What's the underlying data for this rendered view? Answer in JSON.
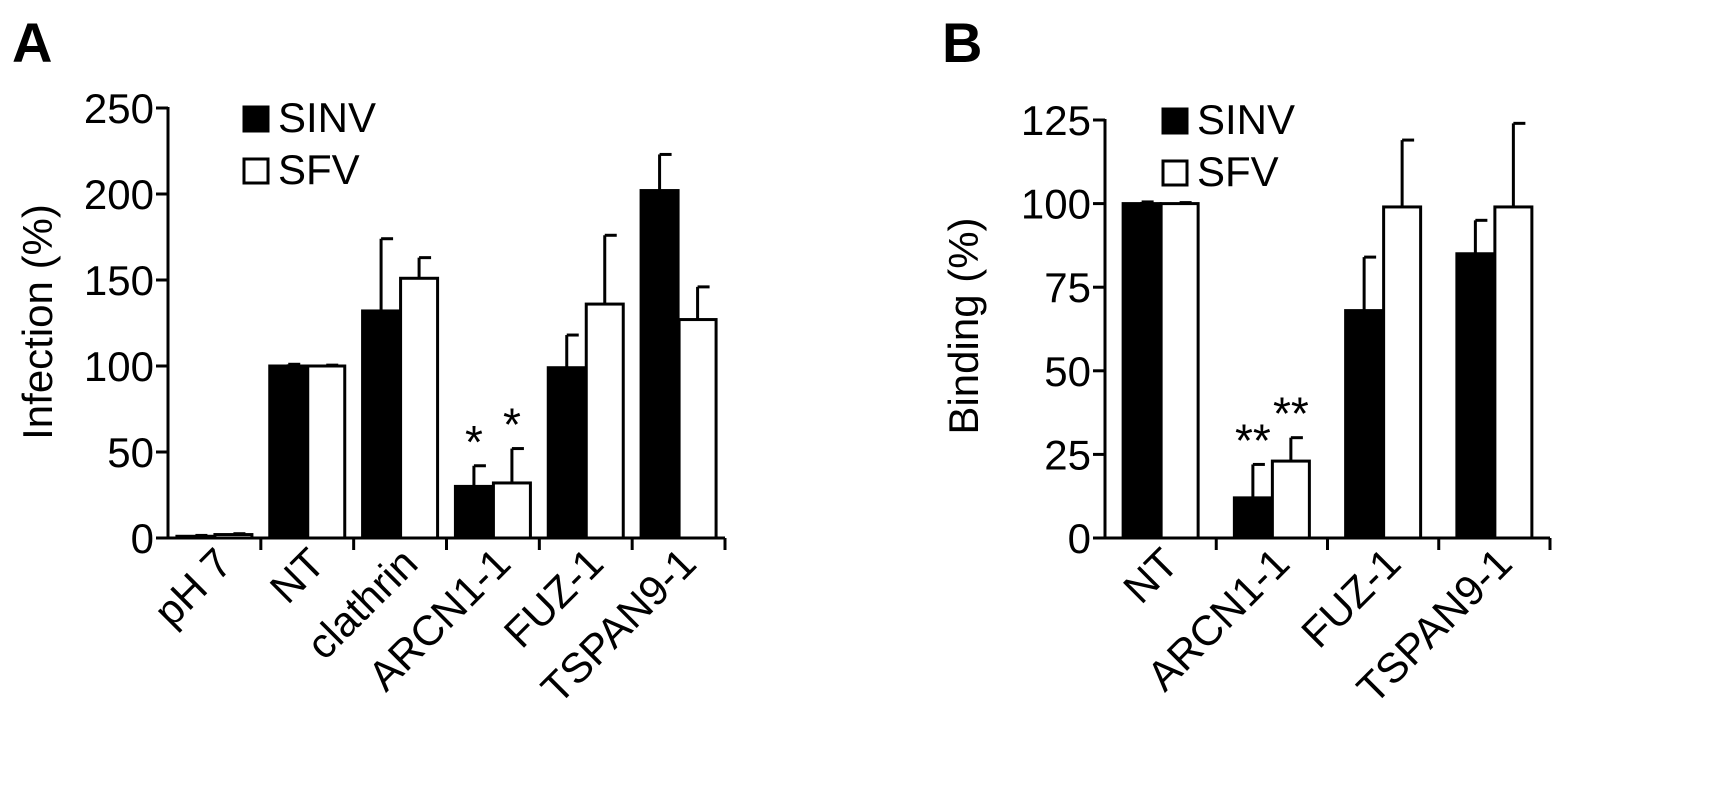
{
  "chart_data": [
    {
      "type": "bar",
      "panel_label": "A",
      "ylabel": "Infection (%)",
      "xlabel": "",
      "ylim": [
        0,
        250
      ],
      "yticks": [
        0,
        50,
        100,
        150,
        200,
        250
      ],
      "categories": [
        "pH 7",
        "NT",
        "clathrin",
        "ARCN1-1",
        "FUZ-1",
        "TSPAN9-1"
      ],
      "series": [
        {
          "name": "SINV",
          "color": "#000000",
          "values": [
            1,
            100,
            132,
            30,
            99,
            202
          ],
          "errors": [
            0.5,
            1,
            42,
            12,
            19,
            21
          ]
        },
        {
          "name": "SFV",
          "color": "#ffffff",
          "values": [
            2,
            100,
            151,
            32,
            136,
            127
          ],
          "errors": [
            0.5,
            0.5,
            12,
            20,
            40,
            19
          ]
        }
      ],
      "annotations": [
        {
          "category": "ARCN1-1",
          "series": "SINV",
          "text": "*"
        },
        {
          "category": "ARCN1-1",
          "series": "SFV",
          "text": "*"
        }
      ],
      "legend": "top-left",
      "grid": false
    },
    {
      "type": "bar",
      "panel_label": "B",
      "ylabel": "Binding (%)",
      "xlabel": "",
      "ylim": [
        0,
        125
      ],
      "yticks": [
        0,
        25,
        50,
        75,
        100,
        125
      ],
      "categories": [
        "NT",
        "ARCN1-1",
        "FUZ-1",
        "TSPAN9-1"
      ],
      "series": [
        {
          "name": "SINV",
          "color": "#000000",
          "values": [
            100,
            12,
            68,
            85
          ],
          "errors": [
            0.5,
            10,
            16,
            10
          ]
        },
        {
          "name": "SFV",
          "color": "#ffffff",
          "values": [
            100,
            23,
            99,
            99
          ],
          "errors": [
            0.3,
            7,
            20,
            25
          ]
        }
      ],
      "annotations": [
        {
          "category": "ARCN1-1",
          "series": "SINV",
          "text": "**"
        },
        {
          "category": "ARCN1-1",
          "series": "SFV",
          "text": "**"
        }
      ],
      "legend": "top-left",
      "grid": false
    }
  ]
}
